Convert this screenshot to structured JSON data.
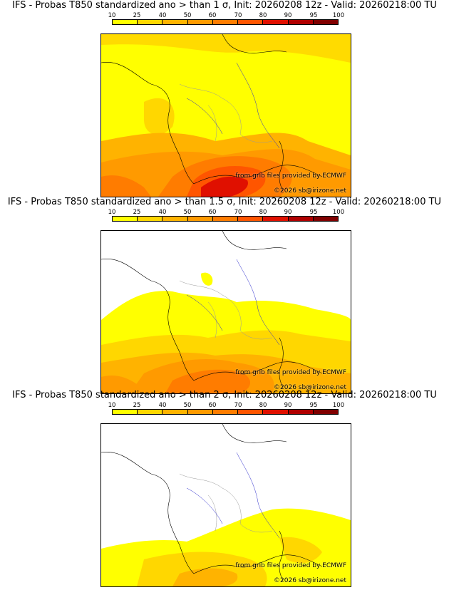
{
  "panels": [
    {
      "title": "IFS - Probas T850  standardized ano > than 1 σ, Init: 20260208 12z - Valid: 20260218:00 TU",
      "threshold": "1 σ"
    },
    {
      "title": "IFS - Probas T850  standardized ano > than 1.5 σ, Init: 20260208 12z - Valid: 20260218:00 TU",
      "threshold": "1.5 σ"
    },
    {
      "title": "IFS - Probas T850  standardized ano > than 2 σ, Init: 20260208 12z - Valid: 20260218:00 TU",
      "threshold": "2 σ"
    }
  ],
  "colorbar": {
    "labels": [
      "10",
      "25",
      "40",
      "50",
      "60",
      "70",
      "80",
      "90",
      "95",
      "100"
    ],
    "colors": [
      "#ffff00",
      "#ffd700",
      "#ffb300",
      "#ff9a00",
      "#ff7c00",
      "#ff5500",
      "#e01000",
      "#b00000",
      "#800000"
    ]
  },
  "credits": {
    "ecmwf": "from grib files provided by ECMWF",
    "copyright": "©2026 sb@irizone.net"
  },
  "colors": {
    "land_line": "#000000",
    "river": "#2a2acc",
    "border": "#999999"
  }
}
